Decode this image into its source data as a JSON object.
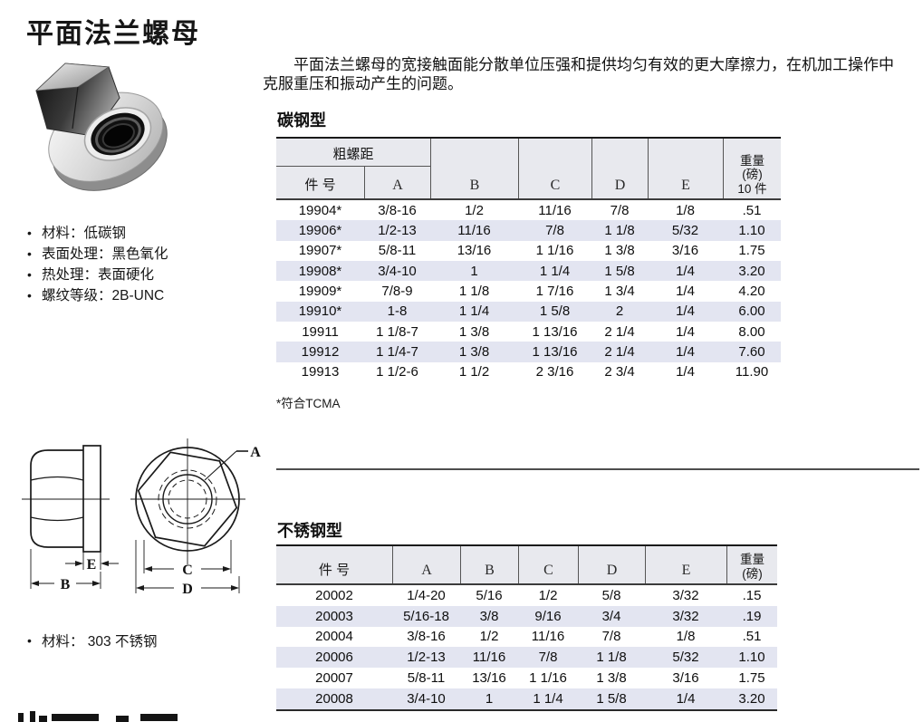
{
  "page_title": "平面法兰螺母",
  "description": {
    "line1": "平面法兰螺母的宽接触面能分散单位压强和提供均匀有效的更大摩擦力，在机加工操作中",
    "line2": "克服重压和振动产生的问题。"
  },
  "carbon": {
    "section_title": "碳钢型",
    "bullets": [
      "材料：低碳钢",
      "表面处理：黑色氧化",
      "热处理：表面硬化",
      "螺纹等级：2B-UNC"
    ],
    "footnote": "*符合TCMA",
    "table": {
      "group_header": "粗螺距",
      "col_part": "件 号",
      "col_a": "A",
      "col_b": "B",
      "col_c": "C",
      "col_d": "D",
      "col_e": "E",
      "weight_lines": [
        "重量",
        "(磅)",
        "10 件"
      ],
      "rows": [
        [
          "19904*",
          "3/8-16",
          "1/2",
          "11/16",
          "7/8",
          "1/8",
          ".51"
        ],
        [
          "19906*",
          "1/2-13",
          "11/16",
          "7/8",
          "1 1/8",
          "5/32",
          "1.10"
        ],
        [
          "19907*",
          "5/8-11",
          "13/16",
          "1 1/16",
          "1 3/8",
          "3/16",
          "1.75"
        ],
        [
          "19908*",
          "3/4-10",
          "1",
          "1 1/4",
          "1 5/8",
          "1/4",
          "3.20"
        ],
        [
          "19909*",
          "7/8-9",
          "1 1/8",
          "1 7/16",
          "1 3/4",
          "1/4",
          "4.20"
        ],
        [
          "19910*",
          "1-8",
          "1 1/4",
          "1 5/8",
          "2",
          "1/4",
          "6.00"
        ],
        [
          "19911",
          "1 1/8-7",
          "1 3/8",
          "1 13/16",
          "2 1/4",
          "1/4",
          "8.00"
        ],
        [
          "19912",
          "1 1/4-7",
          "1 3/8",
          "1 13/16",
          "2 1/4",
          "1/4",
          "7.60"
        ],
        [
          "19913",
          "1 1/2-6",
          "1 1/2",
          "2 3/16",
          "2 3/4",
          "1/4",
          "11.90"
        ]
      ]
    }
  },
  "stainless": {
    "section_title": "不锈钢型",
    "bullet": "材料： 303 不锈钢",
    "table": {
      "col_part": "件 号",
      "col_a": "A",
      "col_b": "B",
      "col_c": "C",
      "col_d": "D",
      "col_e": "E",
      "weight_lines": [
        "重量",
        "(磅)"
      ],
      "rows": [
        [
          "20002",
          "1/4-20",
          "5/16",
          "1/2",
          "5/8",
          "3/32",
          ".15"
        ],
        [
          "20003",
          "5/16-18",
          "3/8",
          "9/16",
          "3/4",
          "3/32",
          ".19"
        ],
        [
          "20004",
          "3/8-16",
          "1/2",
          "11/16",
          "7/8",
          "1/8",
          ".51"
        ],
        [
          "20006",
          "1/2-13",
          "11/16",
          "7/8",
          "1 1/8",
          "5/32",
          "1.10"
        ],
        [
          "20007",
          "5/8-11",
          "13/16",
          "1 1/16",
          "1 3/8",
          "3/16",
          "1.75"
        ],
        [
          "20008",
          "3/4-10",
          "1",
          "1 1/4",
          "1 5/8",
          "1/4",
          "3.20"
        ]
      ]
    }
  },
  "diagram": {
    "a": "A",
    "b": "B",
    "c": "C",
    "d": "D",
    "e": "E"
  },
  "bullet_char": "•",
  "colors": {
    "header_bg": "#e8e9ee",
    "stripe": "#e3e5f1",
    "rule": "#4e4e4e",
    "text": "#161616"
  }
}
